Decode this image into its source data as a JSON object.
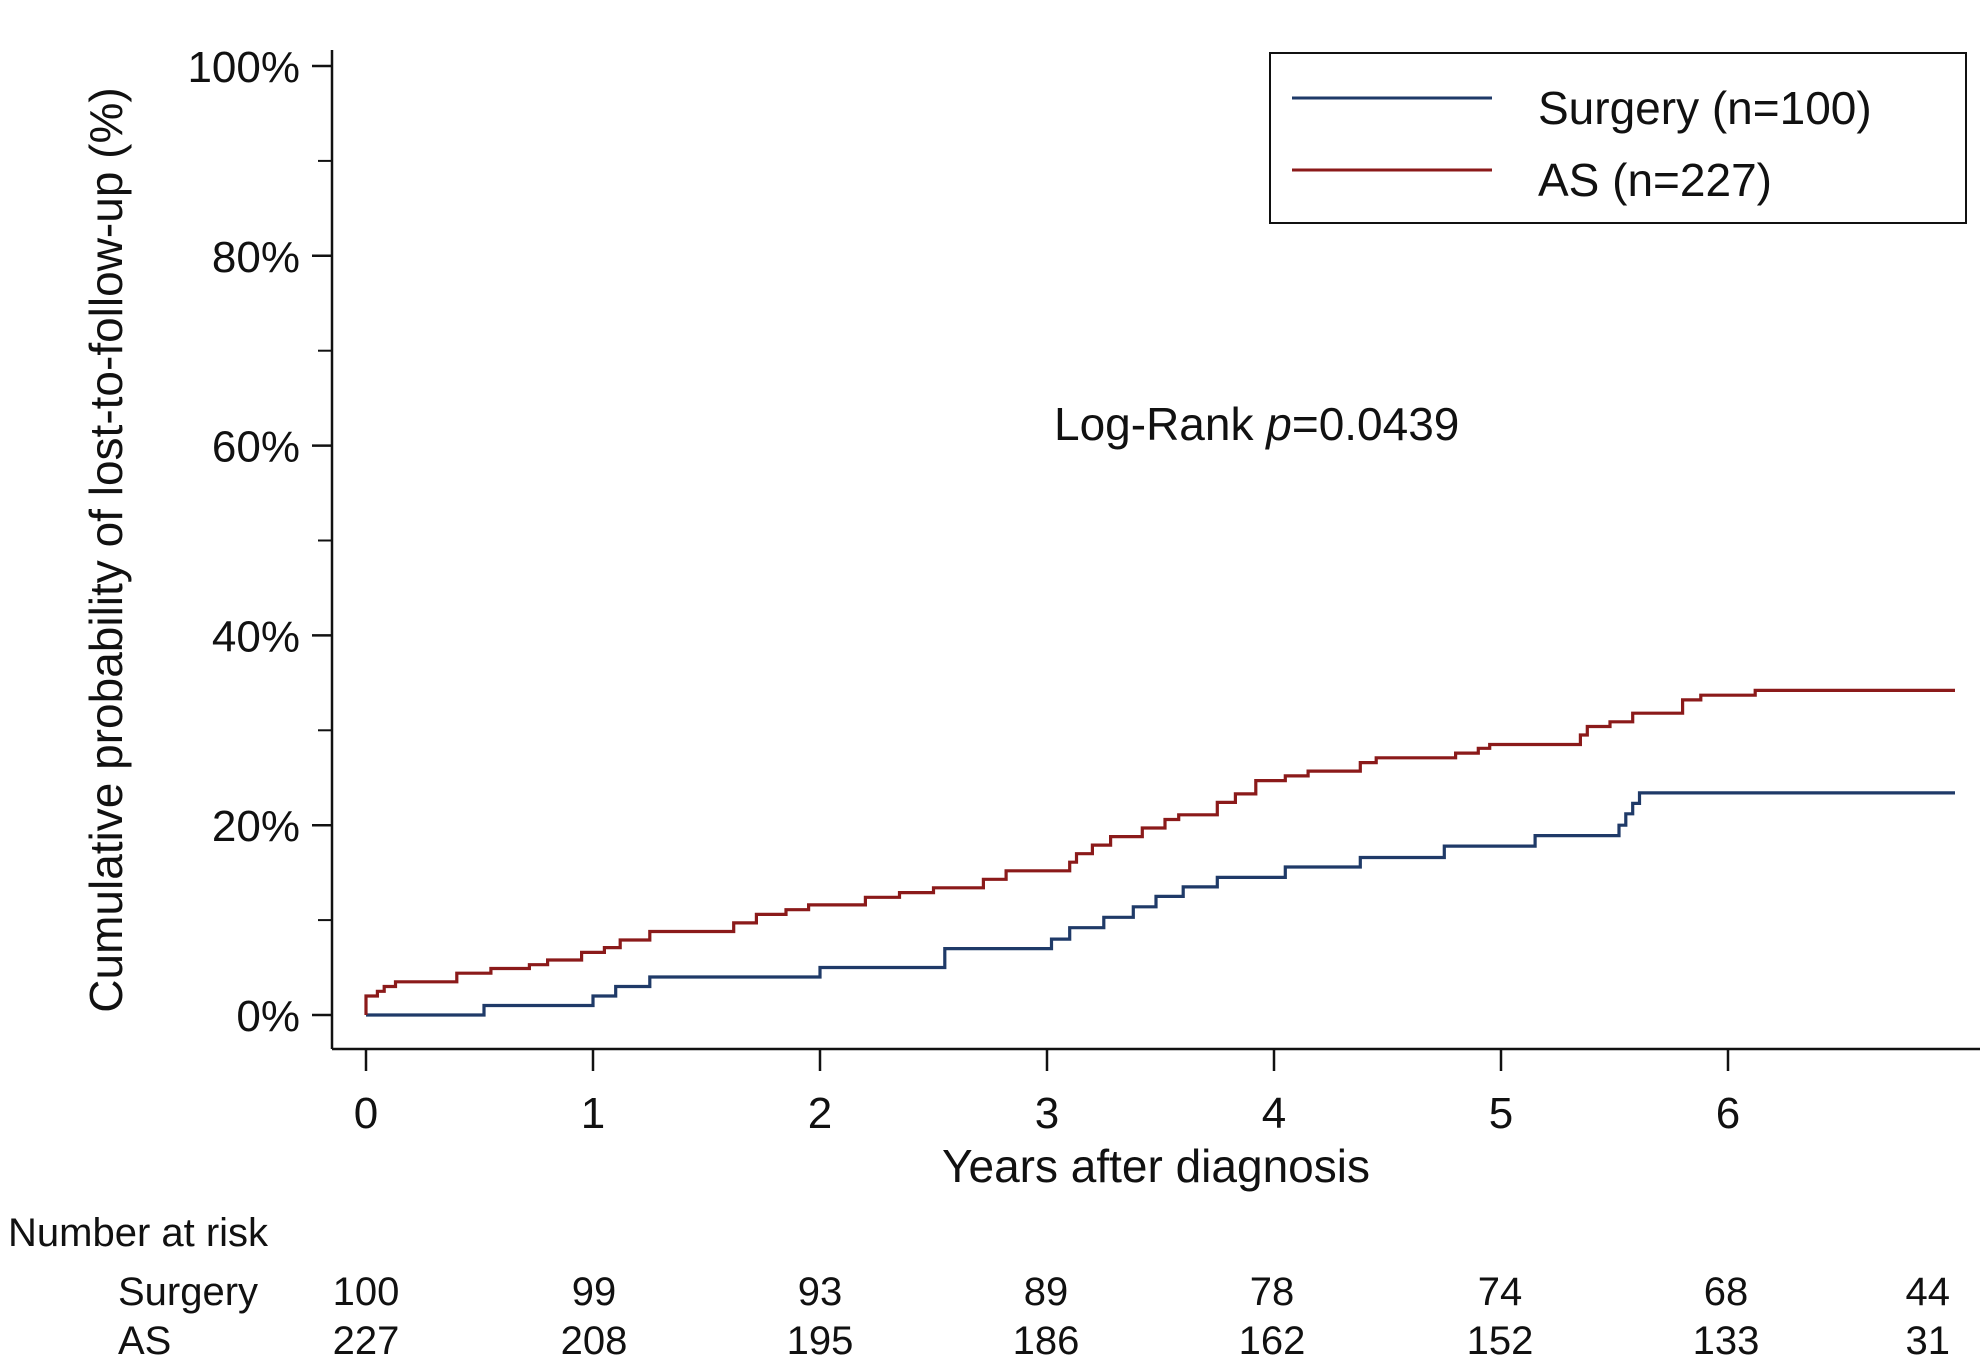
{
  "chart_data": {
    "type": "line",
    "subtype": "kaplan-meier-cumulative-incidence",
    "xlabel": "Years after diagnosis",
    "ylabel": "Cumulative probability of lost-to-follow-up (%)",
    "xlim": [
      0,
      7
    ],
    "ylim": [
      0,
      100
    ],
    "x_ticks": [
      0,
      1,
      2,
      3,
      4,
      5,
      6
    ],
    "x_tick_labels": [
      "0",
      "1",
      "2",
      "3",
      "4",
      "5",
      "6"
    ],
    "y_major_ticks": [
      0,
      20,
      40,
      60,
      80,
      100
    ],
    "y_tick_labels": [
      "0%",
      "20%",
      "40%",
      "60%",
      "80%",
      "100%"
    ],
    "y_minor_ticks": [
      10,
      30,
      50,
      70,
      90
    ],
    "grid": false,
    "legend_position": "top-right",
    "annotation": {
      "prefix": "Log-Rank ",
      "italic": "p",
      "suffix": "=0.0439"
    },
    "series": [
      {
        "name": "Surgery (n=100)",
        "color": "#1f3a68",
        "points": [
          [
            0,
            0
          ],
          [
            0.52,
            0
          ],
          [
            0.52,
            1
          ],
          [
            1.0,
            1
          ],
          [
            1.0,
            2
          ],
          [
            1.1,
            2
          ],
          [
            1.1,
            3
          ],
          [
            1.25,
            3
          ],
          [
            1.25,
            4
          ],
          [
            2.0,
            4
          ],
          [
            2.0,
            5
          ],
          [
            2.55,
            5
          ],
          [
            2.55,
            7
          ],
          [
            3.02,
            7
          ],
          [
            3.02,
            8
          ],
          [
            3.1,
            8
          ],
          [
            3.1,
            9.2
          ],
          [
            3.25,
            9.2
          ],
          [
            3.25,
            10.3
          ],
          [
            3.38,
            10.3
          ],
          [
            3.38,
            11.4
          ],
          [
            3.48,
            11.4
          ],
          [
            3.48,
            12.5
          ],
          [
            3.6,
            12.5
          ],
          [
            3.6,
            13.5
          ],
          [
            3.75,
            13.5
          ],
          [
            3.75,
            14.5
          ],
          [
            4.05,
            14.5
          ],
          [
            4.05,
            15.6
          ],
          [
            4.38,
            15.6
          ],
          [
            4.38,
            16.6
          ],
          [
            4.75,
            16.6
          ],
          [
            4.75,
            17.8
          ],
          [
            5.15,
            17.8
          ],
          [
            5.15,
            18.9
          ],
          [
            5.52,
            18.9
          ],
          [
            5.52,
            20
          ],
          [
            5.55,
            20
          ],
          [
            5.55,
            21.2
          ],
          [
            5.58,
            21.2
          ],
          [
            5.58,
            22.3
          ],
          [
            5.61,
            22.3
          ],
          [
            5.61,
            23.4
          ],
          [
            7.0,
            23.4
          ]
        ]
      },
      {
        "name": "AS (n=227)",
        "color": "#8b1a1a",
        "points": [
          [
            0,
            0
          ],
          [
            0,
            2
          ],
          [
            0.05,
            2
          ],
          [
            0.05,
            2.5
          ],
          [
            0.08,
            2.5
          ],
          [
            0.08,
            3
          ],
          [
            0.13,
            3
          ],
          [
            0.13,
            3.5
          ],
          [
            0.4,
            3.5
          ],
          [
            0.4,
            4.4
          ],
          [
            0.55,
            4.4
          ],
          [
            0.55,
            4.9
          ],
          [
            0.72,
            4.9
          ],
          [
            0.72,
            5.3
          ],
          [
            0.8,
            5.3
          ],
          [
            0.8,
            5.8
          ],
          [
            0.95,
            5.8
          ],
          [
            0.95,
            6.6
          ],
          [
            1.05,
            6.6
          ],
          [
            1.05,
            7.1
          ],
          [
            1.12,
            7.1
          ],
          [
            1.12,
            7.9
          ],
          [
            1.25,
            7.9
          ],
          [
            1.25,
            8.8
          ],
          [
            1.62,
            8.8
          ],
          [
            1.62,
            9.7
          ],
          [
            1.72,
            9.7
          ],
          [
            1.72,
            10.6
          ],
          [
            1.85,
            10.6
          ],
          [
            1.85,
            11.1
          ],
          [
            1.95,
            11.1
          ],
          [
            1.95,
            11.6
          ],
          [
            2.2,
            11.6
          ],
          [
            2.2,
            12.4
          ],
          [
            2.35,
            12.4
          ],
          [
            2.35,
            12.9
          ],
          [
            2.5,
            12.9
          ],
          [
            2.5,
            13.4
          ],
          [
            2.72,
            13.4
          ],
          [
            2.72,
            14.3
          ],
          [
            2.82,
            14.3
          ],
          [
            2.82,
            15.2
          ],
          [
            3.1,
            15.2
          ],
          [
            3.1,
            16.1
          ],
          [
            3.13,
            16.1
          ],
          [
            3.13,
            17
          ],
          [
            3.2,
            17
          ],
          [
            3.2,
            17.9
          ],
          [
            3.28,
            17.9
          ],
          [
            3.28,
            18.8
          ],
          [
            3.42,
            18.8
          ],
          [
            3.42,
            19.7
          ],
          [
            3.52,
            19.7
          ],
          [
            3.52,
            20.6
          ],
          [
            3.58,
            20.6
          ],
          [
            3.58,
            21.1
          ],
          [
            3.75,
            21.1
          ],
          [
            3.75,
            22.4
          ],
          [
            3.83,
            22.4
          ],
          [
            3.83,
            23.3
          ],
          [
            3.92,
            23.3
          ],
          [
            3.92,
            24.7
          ],
          [
            4.05,
            24.7
          ],
          [
            4.05,
            25.2
          ],
          [
            4.15,
            25.2
          ],
          [
            4.15,
            25.7
          ],
          [
            4.38,
            25.7
          ],
          [
            4.38,
            26.6
          ],
          [
            4.45,
            26.6
          ],
          [
            4.45,
            27.1
          ],
          [
            4.8,
            27.1
          ],
          [
            4.8,
            27.6
          ],
          [
            4.9,
            27.6
          ],
          [
            4.9,
            28.1
          ],
          [
            4.95,
            28.1
          ],
          [
            4.95,
            28.5
          ],
          [
            5.35,
            28.5
          ],
          [
            5.35,
            29.5
          ],
          [
            5.38,
            29.5
          ],
          [
            5.38,
            30.4
          ],
          [
            5.48,
            30.4
          ],
          [
            5.48,
            30.9
          ],
          [
            5.58,
            30.9
          ],
          [
            5.58,
            31.8
          ],
          [
            5.8,
            31.8
          ],
          [
            5.8,
            33.2
          ],
          [
            5.88,
            33.2
          ],
          [
            5.88,
            33.7
          ],
          [
            6.12,
            33.7
          ],
          [
            6.12,
            34.2
          ],
          [
            7.0,
            34.2
          ]
        ]
      }
    ],
    "risk_table": {
      "title": "Number at risk",
      "rows": [
        {
          "label": "Surgery",
          "values": [
            "100",
            "99",
            "93",
            "89",
            "78",
            "74",
            "68",
            "44"
          ]
        },
        {
          "label": "AS",
          "values": [
            "227",
            "208",
            "195",
            "186",
            "162",
            "152",
            "133",
            "31"
          ]
        }
      ]
    }
  }
}
